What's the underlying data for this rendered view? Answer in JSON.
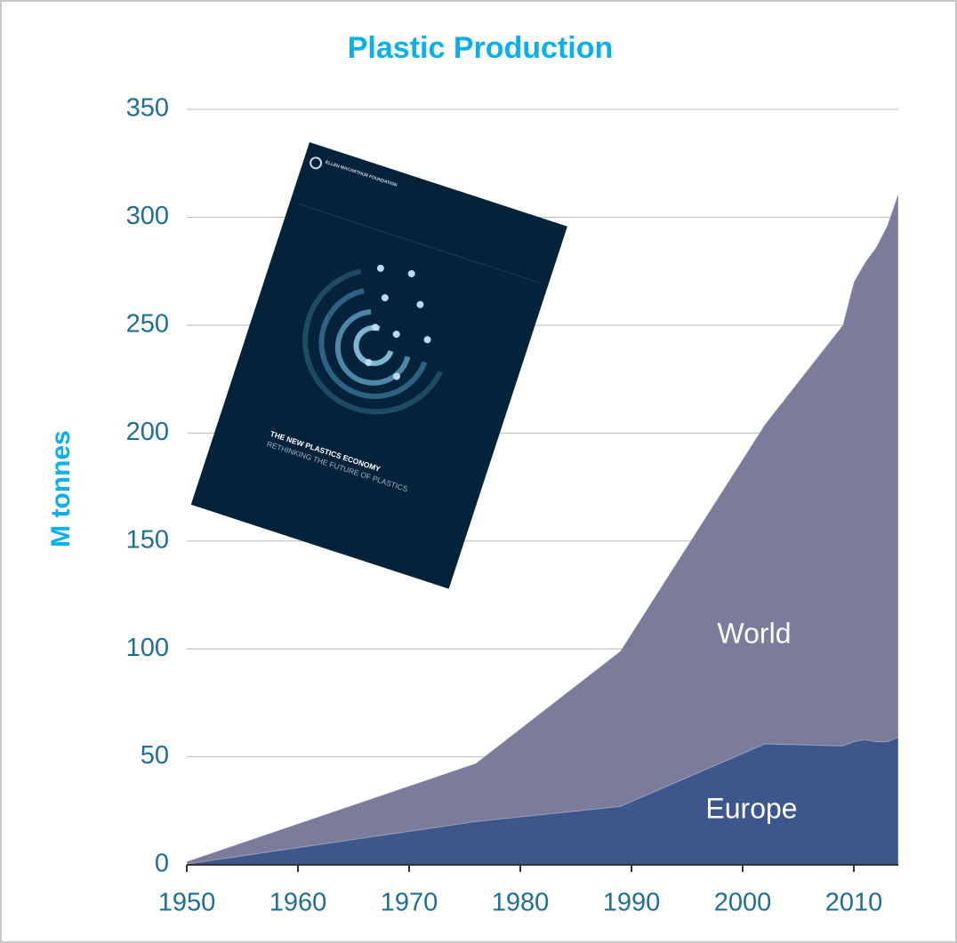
{
  "chart_data": {
    "type": "area",
    "title": "Plastic Production",
    "ylabel": "M tonnes",
    "x": [
      1950,
      1976,
      1989,
      2002,
      2009,
      2010,
      2011,
      2012,
      2013,
      2014
    ],
    "series": [
      {
        "name": "World",
        "color": "#7b7b9c",
        "values": [
          1.5,
          47,
          99,
          204,
          250,
          270,
          279,
          286,
          296,
          311
        ]
      },
      {
        "name": "Europe",
        "color": "#3d568c",
        "values": [
          0.35,
          20,
          27,
          56,
          55,
          57,
          58,
          57,
          57,
          59
        ]
      }
    ],
    "xlim": [
      1950,
      2014
    ],
    "xticks": [
      1950,
      1960,
      1970,
      1980,
      1990,
      2000,
      2010
    ],
    "ylim": [
      0,
      350
    ],
    "yticks": [
      0,
      50,
      100,
      150,
      200,
      250,
      300,
      350
    ],
    "grid": true
  },
  "inset": {
    "publisher": "ELLEN MACARTHUR FOUNDATION",
    "title": "THE NEW PLASTICS ECONOMY",
    "subtitle": "RETHINKING THE FUTURE OF PLASTICS"
  }
}
